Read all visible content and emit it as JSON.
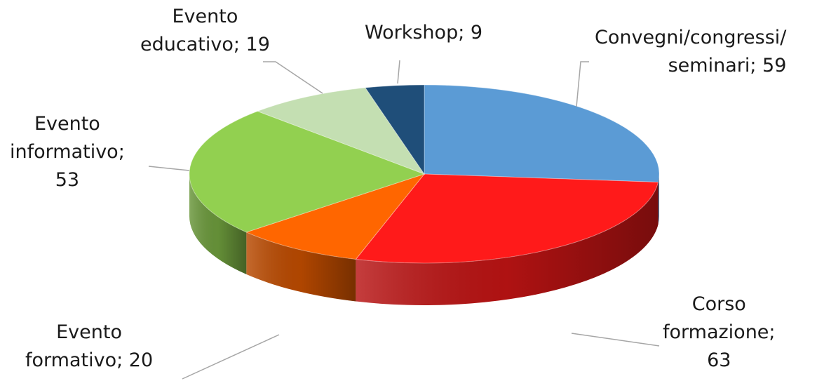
{
  "chart_data": {
    "type": "pie",
    "title": "",
    "style": "3d",
    "slices": [
      {
        "label": "Convegni/congressi/ seminari",
        "value": 59,
        "color": "#5b9bd5"
      },
      {
        "label": "Corso formazione",
        "value": 63,
        "color": "#ff1a1a"
      },
      {
        "label": "Evento formativo",
        "value": 20,
        "color": "#ff6600"
      },
      {
        "label": "Evento informativo",
        "value": 53,
        "color": "#92d050"
      },
      {
        "label": "Evento educativo",
        "value": 19,
        "color": "#c4dfb2"
      },
      {
        "label": "Workshop",
        "value": 9,
        "color": "#1f4e79"
      }
    ],
    "data_labels": [
      {
        "lines": [
          "Convegni/congressi/",
          "seminari; 59"
        ]
      },
      {
        "lines": [
          "Corso",
          "formazione;",
          "63"
        ]
      },
      {
        "lines": [
          "Evento",
          "formativo; 20"
        ]
      },
      {
        "lines": [
          "Evento",
          "informativo;",
          "53"
        ]
      },
      {
        "lines": [
          "Evento",
          "educativo; 19"
        ]
      },
      {
        "lines": [
          "Workshop; 9"
        ]
      }
    ]
  }
}
